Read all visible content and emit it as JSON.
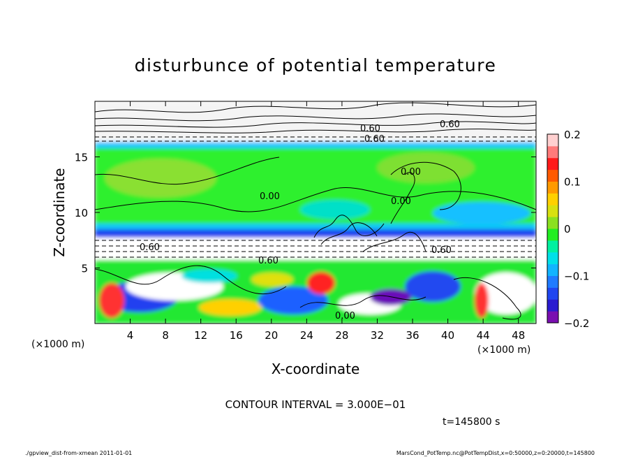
{
  "chart_data": {
    "type": "heatmap",
    "title": "disturbunce of potential temperature",
    "xlabel": "X-coordinate",
    "ylabel": "Z-coordinate",
    "x_unit_left": "(×1000 m)",
    "x_unit_right": "(×1000 m)",
    "xlim": [
      0,
      50
    ],
    "ylim": [
      0,
      20
    ],
    "x_ticks": [
      4,
      8,
      12,
      16,
      20,
      24,
      28,
      32,
      36,
      40,
      44,
      48
    ],
    "y_ticks": [
      5,
      10,
      15
    ],
    "x_tick_labels": [
      "4",
      "8",
      "12",
      "16",
      "20",
      "24",
      "28",
      "32",
      "36",
      "40",
      "44",
      "48"
    ],
    "y_tick_labels": [
      "5",
      "10",
      "15"
    ],
    "colorbar": {
      "min": -0.2,
      "max": 0.2,
      "tick_values": [
        0.2,
        0.1,
        0,
        -0.1,
        -0.2
      ],
      "tick_labels": [
        "0.2",
        "0.1",
        "0",
        "−0.1",
        "−0.2"
      ],
      "colors": [
        "#7a0fb0",
        "#2a1bd0",
        "#2046f0",
        "#1f7bff",
        "#12b4ff",
        "#00e0e8",
        "#00f0a0",
        "#22ee22",
        "#8be020",
        "#d8e010",
        "#ffd000",
        "#ff9a00",
        "#ff5a00",
        "#ff1a1a",
        "#ff7a7a",
        "#ffd0d0"
      ]
    },
    "contour_labels": [
      "0.00",
      "0.00",
      "0.00",
      "0.60",
      "0.60",
      "0.60",
      "0.60",
      "0.60",
      "0.60",
      "0.00"
    ],
    "contour_interval_text": "CONTOUR INTERVAL = 3.000E−01",
    "time_text": "t=145800 s",
    "footer_left": "./gpview_dist-from-xmean  2011-01-01",
    "footer_right": "MarsCond_PotTemp.nc@PotTempDist,x=0:50000,z=0:20000,t=145800"
  }
}
